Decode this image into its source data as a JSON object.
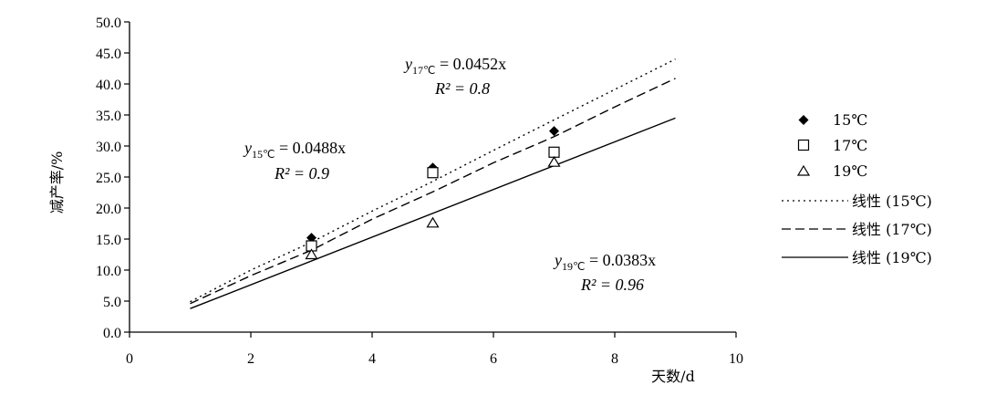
{
  "chart_data": {
    "type": "scatter",
    "xlabel": "天数/d",
    "ylabel": "减产率/%",
    "xlim": [
      0,
      10
    ],
    "ylim": [
      0,
      50
    ],
    "x_ticks": [
      "0",
      "2",
      "4",
      "6",
      "8",
      "10"
    ],
    "y_ticks": [
      "0.0",
      "5.0",
      "10.0",
      "15.0",
      "20.0",
      "25.0",
      "30.0",
      "35.0",
      "40.0",
      "45.0",
      "50.0"
    ],
    "grid": false,
    "legend_position": "right",
    "series": [
      {
        "name": "15℃",
        "marker": "filled-diamond",
        "x": [
          3,
          5,
          7
        ],
        "y": [
          15.2,
          26.5,
          32.4
        ]
      },
      {
        "name": "17℃",
        "marker": "open-square",
        "x": [
          3,
          5,
          7
        ],
        "y": [
          13.9,
          25.7,
          29.0
        ]
      },
      {
        "name": "19℃",
        "marker": "open-triangle",
        "x": [
          3,
          5,
          7
        ],
        "y": [
          12.5,
          17.6,
          27.4
        ]
      }
    ],
    "trendlines": [
      {
        "name": "线性 (15℃)",
        "style": "dotted",
        "slope": 0.0488,
        "x_range": [
          1,
          9
        ],
        "points": [
          [
            1,
            4.9
          ],
          [
            2,
            10.0
          ],
          [
            3,
            14.5
          ],
          [
            4,
            19.5
          ],
          [
            5,
            24.3
          ],
          [
            6,
            29.3
          ],
          [
            7,
            34.2
          ],
          [
            8,
            39.1
          ],
          [
            9,
            44.0
          ]
        ]
      },
      {
        "name": "线性 (17℃)",
        "style": "dashed",
        "slope": 0.0452,
        "x_range": [
          1,
          9
        ],
        "points": [
          [
            1,
            4.6
          ],
          [
            2,
            9.1
          ],
          [
            3,
            13.2
          ],
          [
            4,
            18.2
          ],
          [
            5,
            22.6
          ],
          [
            6,
            27.3
          ],
          [
            7,
            31.5
          ],
          [
            8,
            36.3
          ],
          [
            9,
            40.9
          ]
        ]
      },
      {
        "name": "线性 (19℃)",
        "style": "solid",
        "slope": 0.0383,
        "x_range": [
          1,
          9
        ],
        "points": [
          [
            1,
            3.8
          ],
          [
            9,
            34.5
          ]
        ]
      }
    ],
    "annotations": [
      {
        "id": "eq17",
        "main": "y",
        "sub": "17℃",
        "rest": " = 0.0452x",
        "r2": "R² = 0.8"
      },
      {
        "id": "eq15",
        "main": "y",
        "sub": "15℃",
        "rest": " = 0.0488x",
        "r2": "R² = 0.9"
      },
      {
        "id": "eq19",
        "main": "y",
        "sub": "19℃",
        "rest": " = 0.0383x",
        "r2": "R² = 0.96"
      }
    ]
  }
}
